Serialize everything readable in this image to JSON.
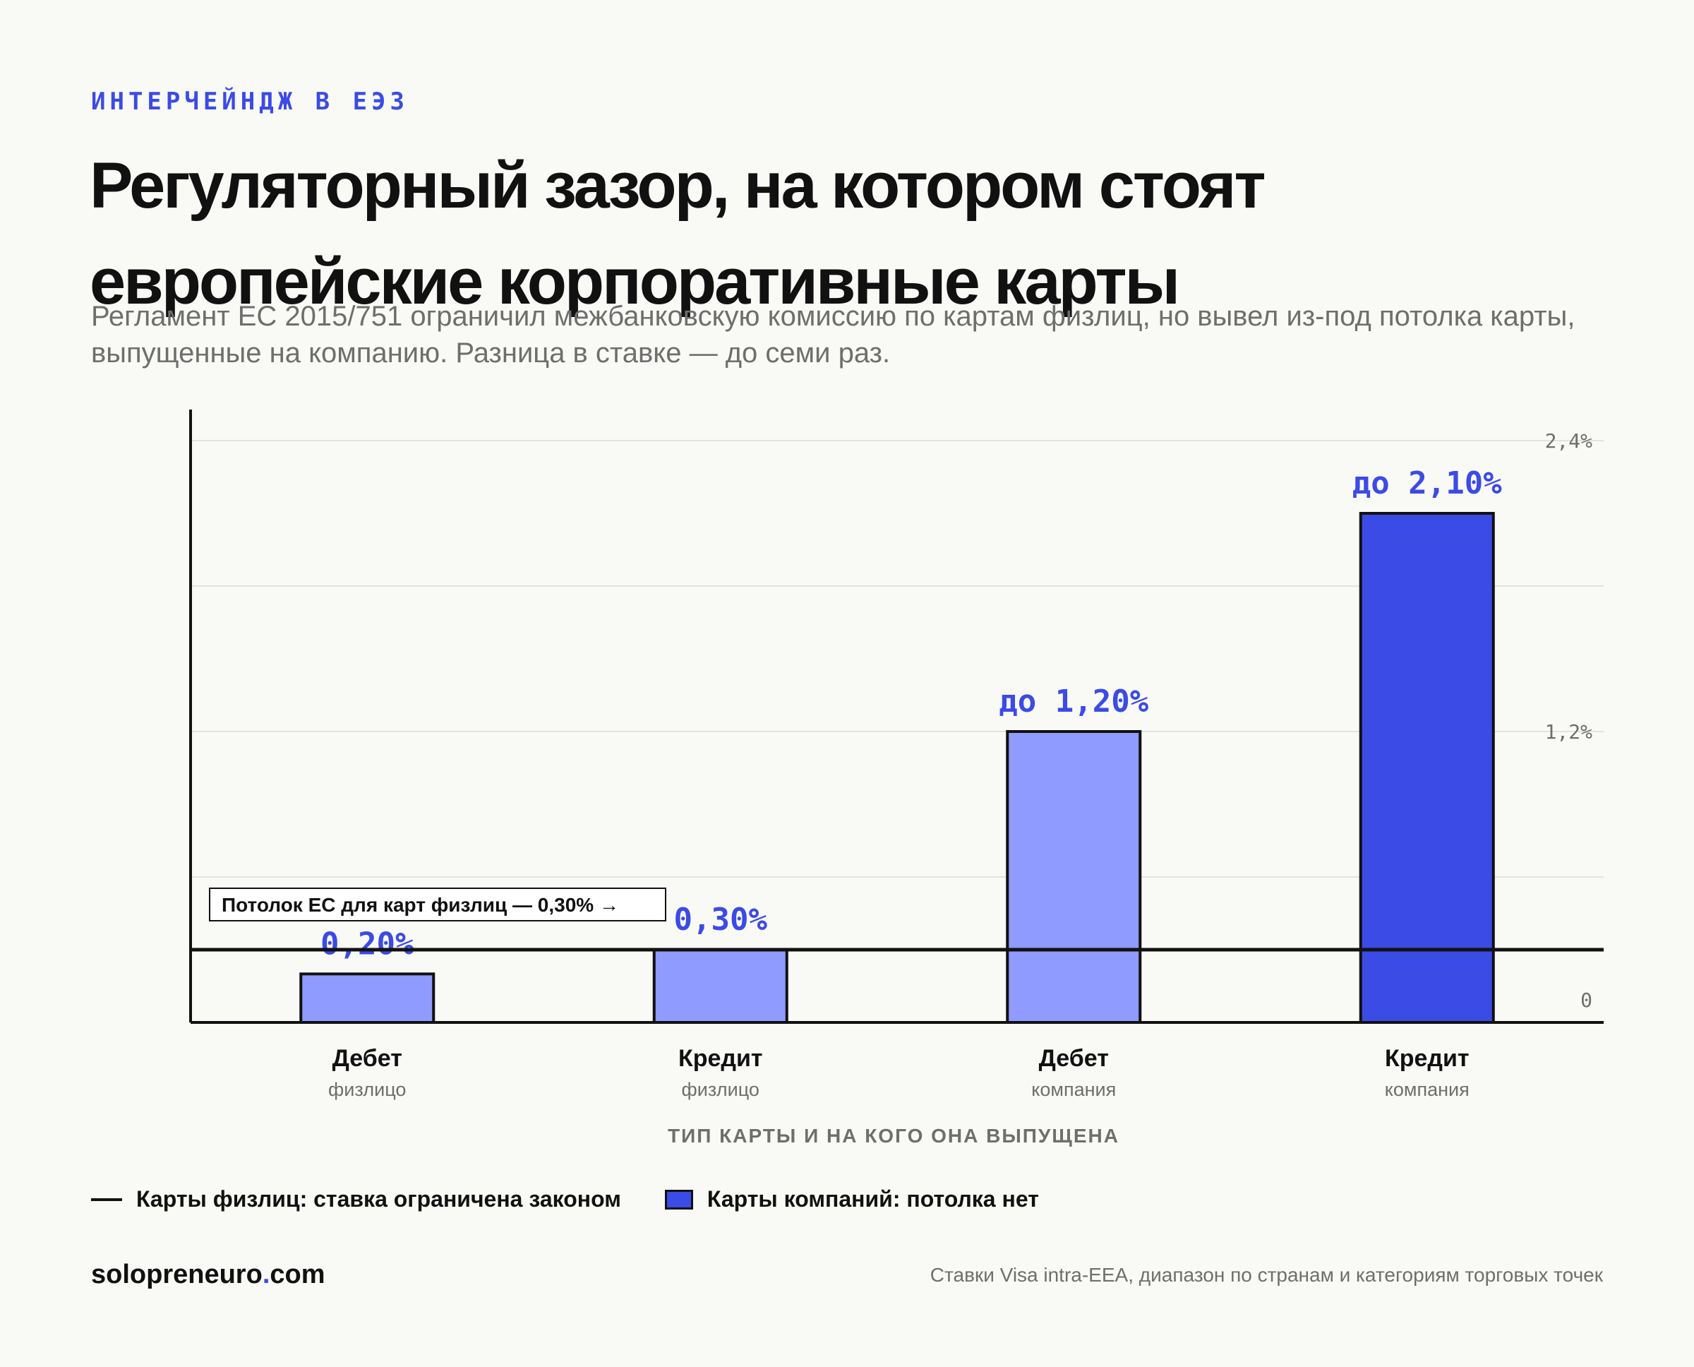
{
  "kicker": "ИНТЕРЧЕЙНДЖ В ЕЭЗ",
  "title": "Регуляторный зазор, на котором стоят европейские корпоративные карты",
  "subtitle": "Регламент ЕС 2015/751 ограничил межбанковскую комиссию по картам физлиц, но вывел из-под потолка карты, выпущенные на компанию. Разница в ставке — до семи раз.",
  "colors": {
    "accent": "#3b4be6",
    "bar_light": "#8f9bff",
    "bar_dark": "#3b4be6",
    "axis": "#111111",
    "grid": "#e3e3de",
    "muted": "#6e6e6e"
  },
  "chart_data": {
    "type": "bar",
    "categories": [
      "Дебет",
      "Кредит",
      "Дебет",
      "Кредит"
    ],
    "category_sublabels": [
      "физлицо",
      "физлицо",
      "компания",
      "компания"
    ],
    "values": [
      0.2,
      0.3,
      1.2,
      2.1
    ],
    "value_labels": [
      "0,20%",
      "0,30%",
      "до 1,20%",
      "до 2,10%"
    ],
    "bar_colors": [
      "#8f9bff",
      "#8f9bff",
      "#8f9bff",
      "#3b4be6"
    ],
    "xlabel": "ТИП КАРТЫ И НА КОГО ОНА ВЫПУЩЕНА",
    "ylabel": "",
    "ylim": [
      0,
      2.4
    ],
    "y_ticks": [
      {
        "value": 0,
        "label": "0"
      },
      {
        "value": 1.2,
        "label": "1,2%"
      },
      {
        "value": 2.4,
        "label": "2,4%"
      }
    ],
    "gridlines": [
      0.6,
      1.2,
      1.8,
      2.4
    ],
    "y_axis_side": "right",
    "reference_line": {
      "value": 0.3,
      "label": "Потолок ЕС для карт физлиц — 0,30% →"
    },
    "grid": true
  },
  "legend": {
    "cap_label": "Карты физлиц: ставка ограничена законом",
    "no_cap_label": "Карты компаний: потолка нет"
  },
  "footer": {
    "brand_main": "solopreneuro",
    "brand_dot": ".",
    "brand_tld": "com",
    "note": "Ставки Visa intra-EEA, диапазон по странам и категориям торговых точек"
  }
}
